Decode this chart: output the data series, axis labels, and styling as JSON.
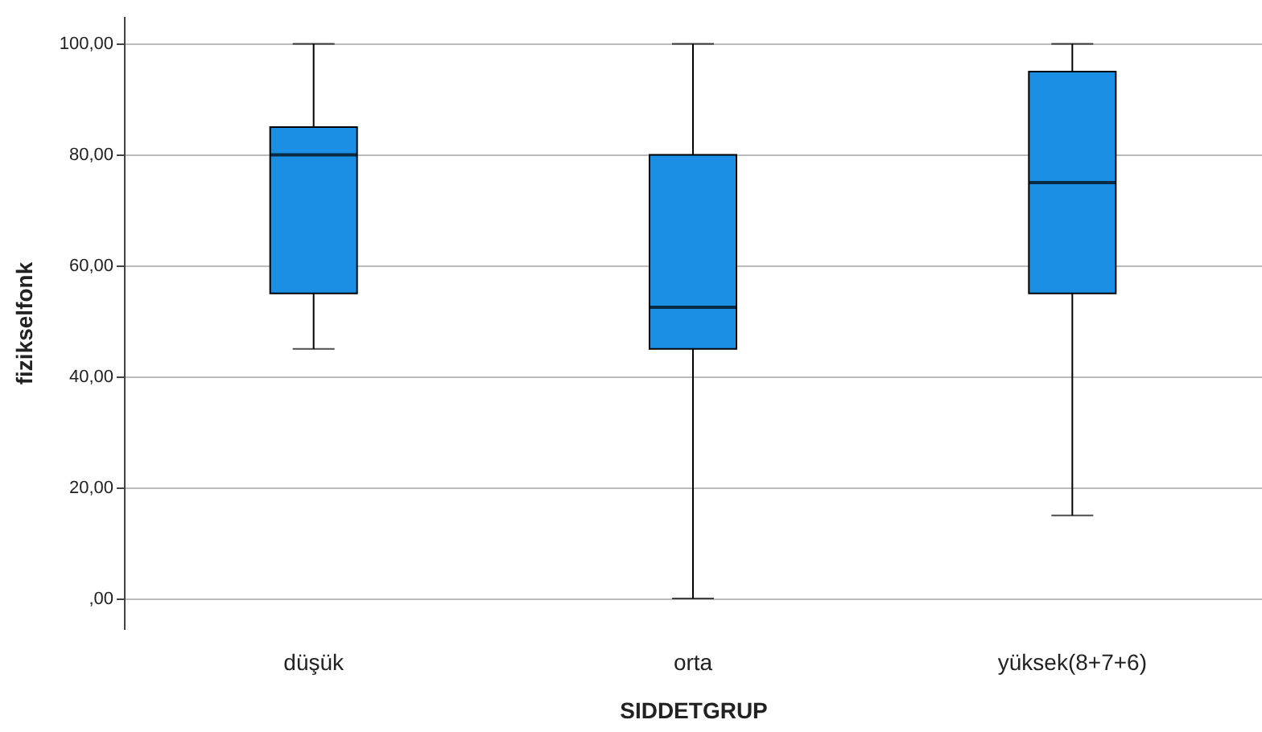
{
  "chart_data": {
    "type": "box",
    "xlabel": "SIDDETGRUP",
    "ylabel": "fizikselfonk",
    "categories": [
      "düşük",
      "orta",
      "yüksek(8+7+6)"
    ],
    "boxes": [
      {
        "low": 45,
        "q1": 55,
        "median": 80,
        "q3": 85,
        "high": 100
      },
      {
        "low": 0,
        "q1": 45,
        "median": 52.5,
        "q3": 80,
        "high": 100
      },
      {
        "low": 15,
        "q1": 55,
        "median": 75,
        "q3": 95,
        "high": 100
      }
    ],
    "color": "#1a8fe3",
    "ylim": [
      -5.5,
      105
    ],
    "yticks": [
      {
        "value": 0,
        "label": ",00"
      },
      {
        "value": 20,
        "label": "20,00"
      },
      {
        "value": 40,
        "label": "40,00"
      },
      {
        "value": 60,
        "label": "60,00"
      },
      {
        "value": 80,
        "label": "80,00"
      },
      {
        "value": 100,
        "label": "100,00"
      }
    ],
    "grid": "y"
  }
}
